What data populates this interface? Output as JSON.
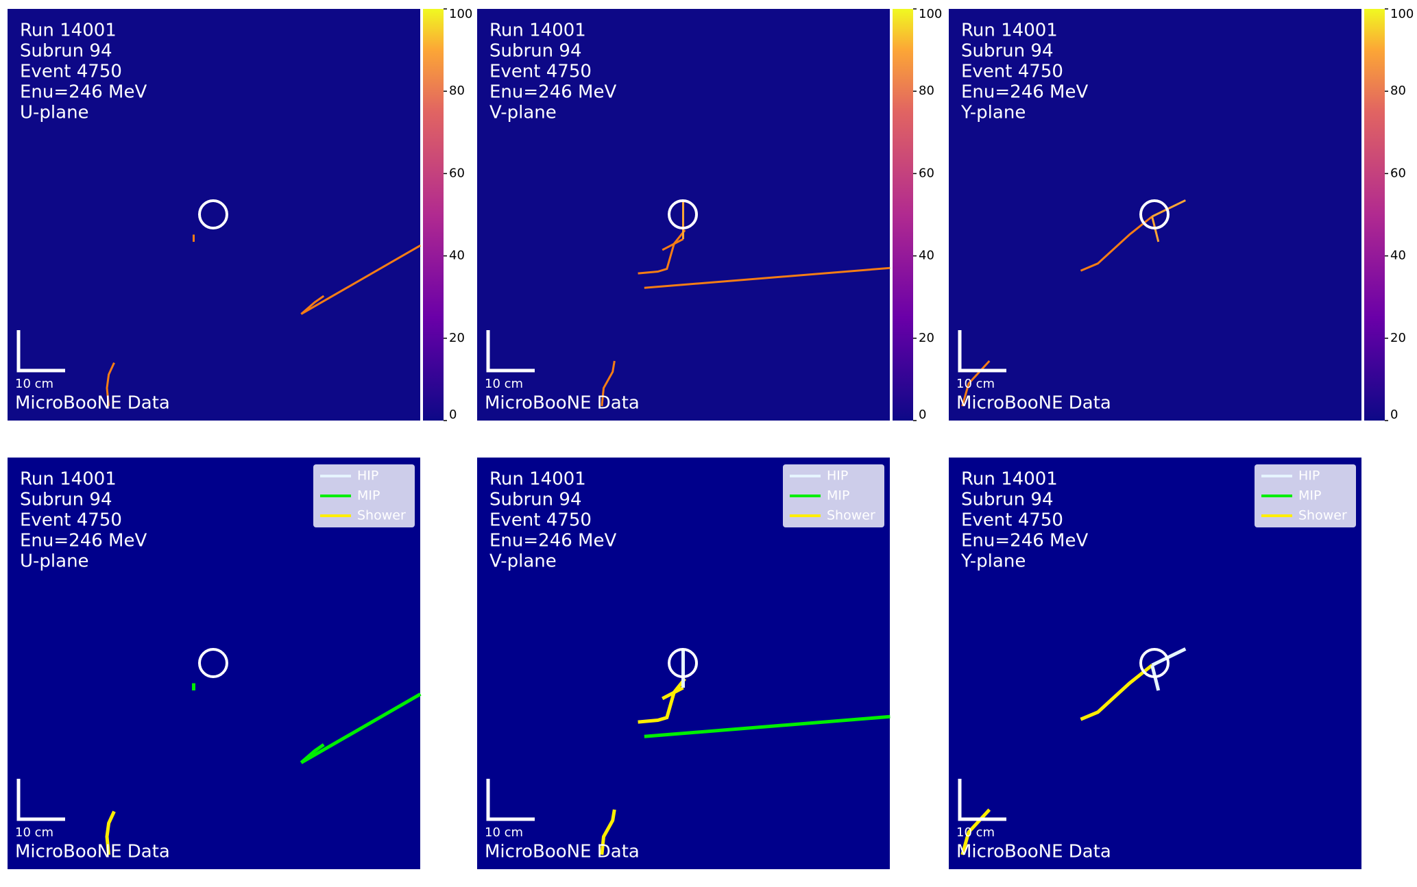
{
  "panels": [
    {
      "lines": [
        "Run 14001",
        "Subrun 94",
        "Event 4750",
        "Enu=246 MeV",
        "U-plane"
      ],
      "scale_label": "10 cm",
      "footer": "MicroBooNE Data"
    },
    {
      "lines": [
        "Run 14001",
        "Subrun 94",
        "Event 4750",
        "Enu=246 MeV",
        "V-plane"
      ],
      "scale_label": "10 cm",
      "footer": "MicroBooNE Data"
    },
    {
      "lines": [
        "Run 14001",
        "Subrun 94",
        "Event 4750",
        "Enu=246 MeV",
        "Y-plane"
      ],
      "scale_label": "10 cm",
      "footer": "MicroBooNE Data"
    },
    {
      "lines": [
        "Run 14001",
        "Subrun 94",
        "Event 4750",
        "Enu=246 MeV",
        "U-plane"
      ],
      "scale_label": "10 cm",
      "footer": "MicroBooNE Data"
    },
    {
      "lines": [
        "Run 14001",
        "Subrun 94",
        "Event 4750",
        "Enu=246 MeV",
        "V-plane"
      ],
      "scale_label": "10 cm",
      "footer": "MicroBooNE Data"
    },
    {
      "lines": [
        "Run 14001",
        "Subrun 94",
        "Event 4750",
        "Enu=246 MeV",
        "Y-plane"
      ],
      "scale_label": "10 cm",
      "footer": "MicroBooNE Data"
    }
  ],
  "colorbar": {
    "lim": [
      0,
      100
    ],
    "ticks": [
      0,
      20,
      40,
      60,
      80,
      100
    ]
  },
  "legend": [
    {
      "name": "HIP",
      "color": "#e6f4ff"
    },
    {
      "name": "MIP",
      "color": "#00ee00"
    },
    {
      "name": "Shower",
      "color": "#ffee00"
    }
  ]
}
